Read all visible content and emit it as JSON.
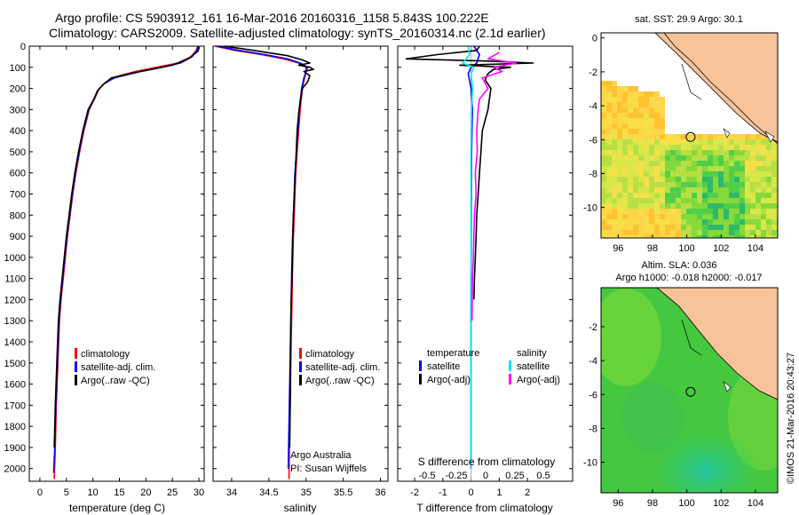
{
  "header": {
    "line1": "Argo profile: CS 5903912_161 16-Mar-2016 20160316_1158 5.843S 100.222E",
    "line2": "Climatology: CARS2009. Satellite-adjusted climatology: synTS_20160314.nc (2.1d earlier)"
  },
  "colors": {
    "climatology": "#ff0000",
    "satellite": "#0000ff",
    "argo": "#000000",
    "salinity_satellite": "#00e5ff",
    "salinity_argo": "#ff00ff",
    "land": "#f9c39a"
  },
  "chart_data": [
    {
      "type": "line",
      "id": "temperature",
      "xlabel": "temperature (deg C)",
      "ylabel": "",
      "xlim": [
        -2,
        31
      ],
      "ylim": [
        2060,
        0
      ],
      "xticks": [
        0,
        5,
        10,
        15,
        20,
        25,
        30
      ],
      "xtick_labels": [
        "0",
        "5",
        "10",
        "15",
        "20",
        "25",
        "30"
      ],
      "yticks": [
        0,
        100,
        200,
        300,
        400,
        500,
        600,
        700,
        800,
        900,
        1000,
        1100,
        1200,
        1300,
        1400,
        1500,
        1600,
        1700,
        1800,
        1900,
        2000
      ],
      "legend": [
        "climatology",
        "satellite-adj. clim.",
        "Argo(..raw -QC)"
      ],
      "series": [
        {
          "name": "climatology",
          "color": "#ff0000",
          "x": [
            29.8,
            29.5,
            28.5,
            26,
            22,
            18,
            15,
            12.5,
            11.2,
            10.3,
            9.3,
            8.3,
            7.5,
            6.8,
            6.2,
            5.7,
            5.2,
            4.8,
            4.4,
            4.0,
            3.7,
            3.4,
            3.1,
            2.9,
            2.7
          ],
          "y": [
            0,
            20,
            50,
            80,
            100,
            120,
            140,
            170,
            200,
            250,
            300,
            400,
            500,
            600,
            700,
            800,
            900,
            1000,
            1100,
            1200,
            1300,
            1500,
            1700,
            1900,
            2050
          ]
        },
        {
          "name": "satellite-adj. clim.",
          "color": "#0000ff",
          "x": [
            29.9,
            29.6,
            28.7,
            26.5,
            23,
            19,
            14,
            12,
            10.9,
            10.2,
            9.2,
            8.2,
            7.4,
            6.7,
            6.1,
            5.6,
            5.1,
            4.7,
            4.3,
            3.9,
            3.6,
            3.3,
            3.0,
            2.8,
            2.6
          ],
          "y": [
            0,
            20,
            50,
            80,
            100,
            120,
            150,
            180,
            210,
            250,
            300,
            400,
            500,
            600,
            700,
            800,
            900,
            1000,
            1100,
            1200,
            1300,
            1500,
            1700,
            1900,
            2020
          ]
        },
        {
          "name": "Argo(..raw -QC)",
          "color": "#000000",
          "x": [
            30.1,
            29.8,
            28,
            25,
            21,
            17,
            13.5,
            12,
            10.9,
            10.2,
            9.1,
            8.1,
            7.3,
            6.6,
            6.0,
            5.5,
            5.0,
            4.6,
            4.2,
            3.8,
            3.5,
            3.2,
            2.9,
            2.7
          ],
          "y": [
            5,
            25,
            60,
            90,
            110,
            130,
            150,
            180,
            210,
            250,
            300,
            400,
            500,
            600,
            700,
            800,
            900,
            1000,
            1100,
            1200,
            1300,
            1500,
            1700,
            1900
          ]
        }
      ]
    },
    {
      "type": "line",
      "id": "salinity",
      "xlabel": "salinity",
      "xlim": [
        33.75,
        36.1
      ],
      "ylim": [
        2060,
        0
      ],
      "xticks": [
        34,
        34.5,
        35,
        35.5,
        36
      ],
      "xtick_labels": [
        "34",
        "34.5",
        "35",
        "35.5",
        "36"
      ],
      "legend": [
        "climatology",
        "satellite-adj. clim.",
        "Argo(..raw -QC)"
      ],
      "annotations": [
        "Argo Australia",
        "PI: Susan Wijffels"
      ],
      "series": [
        {
          "name": "climatology",
          "color": "#ff0000",
          "x": [
            33.78,
            34.05,
            34.4,
            34.7,
            34.9,
            35.0,
            35.0,
            34.98,
            34.95,
            34.92,
            34.9,
            34.88,
            34.86,
            34.85,
            34.84,
            34.83,
            34.82,
            34.81,
            34.8,
            34.79,
            34.78,
            34.77
          ],
          "y": [
            0,
            20,
            40,
            60,
            80,
            100,
            120,
            150,
            200,
            300,
            400,
            500,
            600,
            700,
            800,
            900,
            1000,
            1200,
            1400,
            1600,
            1800,
            2050
          ]
        },
        {
          "name": "satellite-adj. clim.",
          "color": "#0000ff",
          "x": [
            33.8,
            34.1,
            34.45,
            34.75,
            34.92,
            35.02,
            35.0,
            34.97,
            34.94,
            34.91,
            34.89,
            34.87,
            34.85,
            34.84,
            34.83,
            34.82,
            34.81,
            34.8,
            34.79,
            34.78,
            34.77,
            34.76
          ],
          "y": [
            0,
            20,
            40,
            60,
            80,
            100,
            120,
            150,
            200,
            300,
            400,
            500,
            600,
            700,
            800,
            900,
            1000,
            1200,
            1400,
            1600,
            1800,
            2000
          ]
        },
        {
          "name": "Argo(..raw -QC)",
          "color": "#000000",
          "x": [
            33.9,
            34.3,
            34.75,
            34.95,
            35.05,
            34.9,
            35.05,
            35.1,
            34.97,
            35.05,
            35.02,
            34.95,
            34.92,
            34.9,
            34.88,
            34.87,
            34.86,
            34.85,
            34.84,
            34.83,
            34.82,
            34.82,
            34.81,
            34.8,
            34.79,
            34.79,
            34.78
          ],
          "y": [
            0,
            20,
            45,
            65,
            80,
            90,
            100,
            110,
            120,
            140,
            170,
            200,
            260,
            320,
            400,
            480,
            560,
            640,
            720,
            800,
            900,
            1000,
            1100,
            1200,
            1400,
            1600,
            1900
          ]
        }
      ]
    },
    {
      "type": "line",
      "id": "differences",
      "xlabel": "T difference from climatology",
      "xlabel_top": "S difference from climatology",
      "xlim": [
        -2.6,
        3.6
      ],
      "ylim": [
        2060,
        0
      ],
      "xticks": [
        -2,
        -1,
        0,
        1,
        2
      ],
      "xtick_labels": [
        "-2",
        "-1",
        "0",
        "1",
        "2"
      ],
      "s_ticks_labels": [
        "-0.5",
        "-0.25",
        "0",
        "0.25",
        "0.5"
      ],
      "legend_headers": [
        "temperature",
        "salinity"
      ],
      "legend": [
        "satellite",
        "Argo(-adj)",
        "satellite",
        "Argo(-adj)"
      ],
      "series": [
        {
          "name": "temperature satellite",
          "color": "#0000ff",
          "x": [
            0.1,
            0.3,
            0.2,
            0.0,
            -0.1,
            0.0,
            0.05,
            0.02,
            0.01,
            0.0,
            0.0,
            0.0
          ],
          "y": [
            0,
            40,
            80,
            100,
            130,
            200,
            300,
            500,
            800,
            1200,
            1600,
            2000
          ]
        },
        {
          "name": "temperature Argo(-adj)",
          "color": "#000000",
          "x": [
            0.3,
            0.2,
            -1.2,
            -2.3,
            0.5,
            2.2,
            -0.4,
            1.4,
            0.8,
            0.6,
            0.5,
            0.7,
            0.6,
            0.4,
            0.35,
            0.3,
            0.25,
            0.2,
            0.18,
            0.15,
            0.12,
            0.1
          ],
          "y": [
            0,
            20,
            40,
            60,
            70,
            80,
            90,
            100,
            110,
            130,
            160,
            200,
            300,
            400,
            500,
            600,
            700,
            800,
            900,
            1000,
            1100,
            1200
          ]
        },
        {
          "name": "salinity satellite",
          "color": "#00e5ff",
          "x": [
            -0.1,
            -0.05,
            -0.3,
            0.1,
            0.0,
            0.05,
            0.02,
            0.0,
            0.0,
            0.0,
            0.0
          ],
          "y": [
            0,
            40,
            80,
            100,
            130,
            200,
            300,
            500,
            800,
            1200,
            2000
          ]
        },
        {
          "name": "salinity Argo(-adj)",
          "color": "#ff00ff",
          "x": [
            1.0,
            0.6,
            1.6,
            0.8,
            1.1,
            0.4,
            0.6,
            0.3,
            0.25,
            0.2,
            0.22,
            0.15,
            0.18,
            0.12,
            0.1,
            0.08,
            0.05,
            0.04,
            0.03
          ],
          "y": [
            30,
            60,
            80,
            100,
            120,
            150,
            200,
            250,
            300,
            400,
            500,
            600,
            700,
            800,
            900,
            1000,
            1100,
            1200,
            1300
          ]
        }
      ]
    },
    {
      "type": "heatmap",
      "id": "sst-map",
      "title": "sat. SST: 29.9 Argo: 30.1",
      "xlim": [
        95,
        105.3
      ],
      "ylim": [
        -11.8,
        0.3
      ],
      "xticks": [
        96,
        98,
        100,
        102,
        104
      ],
      "yticks": [
        0,
        -2,
        -4,
        -6,
        -8,
        -10
      ],
      "marker": {
        "lon": 100.222,
        "lat": -5.843
      }
    },
    {
      "type": "heatmap",
      "id": "sla-map",
      "title": "Altim. SLA: 0.036",
      "subtitle": "Argo h1000: -0.018 h2000: -0.017",
      "xlim": [
        95,
        105.3
      ],
      "ylim": [
        -11.8,
        0.3
      ],
      "xticks": [
        96,
        98,
        100,
        102,
        104
      ],
      "yticks": [
        -2,
        -4,
        -6,
        -8,
        -10
      ],
      "marker": {
        "lon": 100.222,
        "lat": -5.843
      }
    }
  ],
  "footer": {
    "credit": "©IMOS 21-Mar-2016 20:43:27"
  }
}
